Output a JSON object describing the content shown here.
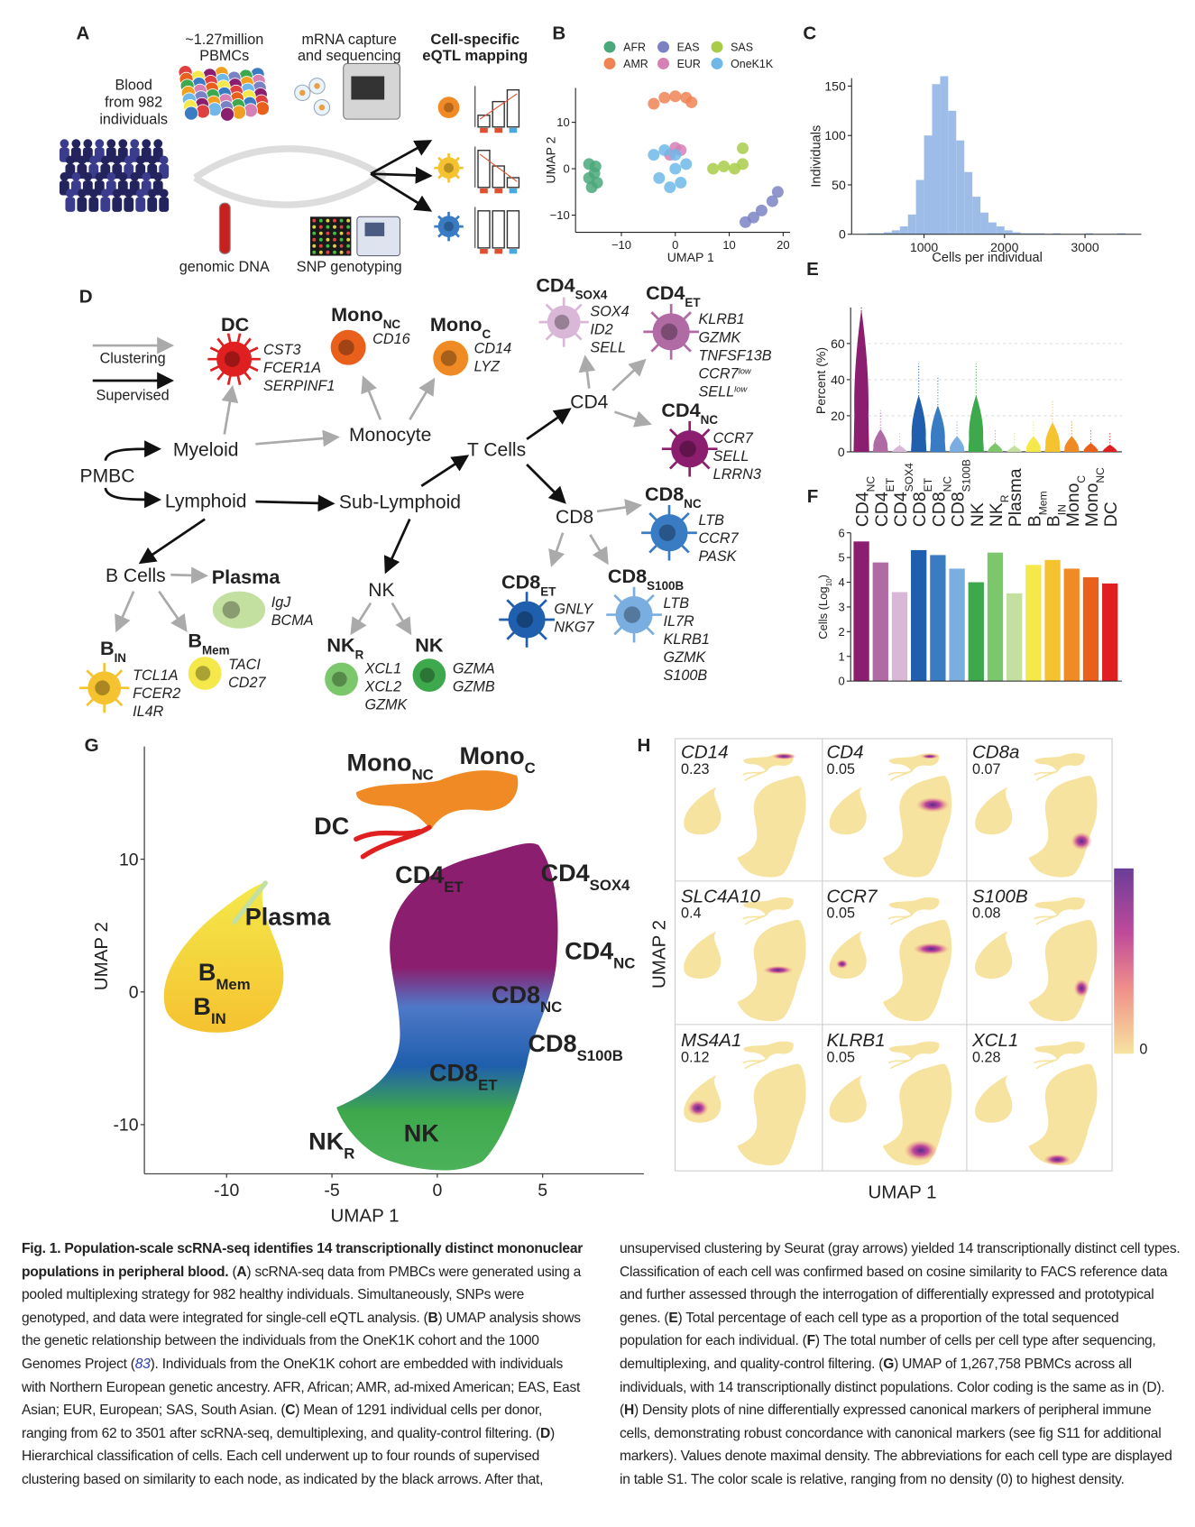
{
  "panel_letters": [
    "A",
    "B",
    "C",
    "D",
    "E",
    "F",
    "G",
    "H"
  ],
  "panel_a": {
    "blood": [
      "Blood",
      "from 982",
      "individuals"
    ],
    "pbmcs": [
      "~1.27million",
      "PBMCs"
    ],
    "capture": [
      "mRNA capture",
      "and sequencing"
    ],
    "eqtl": [
      "Cell-specific",
      "eQTL mapping"
    ],
    "dna": "genomic DNA",
    "snp": "SNP genotyping"
  },
  "chart_data": [
    {
      "type": "scatter",
      "xlabel": "UMAP 1",
      "ylabel": "UMAP 2",
      "xlim": [
        -18.5,
        21.3
      ],
      "ylim": [
        -13.7,
        17.4
      ],
      "xticks": [
        {
          "value": -10,
          "label": "−10"
        },
        0,
        10,
        20
      ],
      "yticks": [
        {
          "value": -10,
          "label": "−10"
        },
        0,
        10
      ],
      "series": [
        {
          "name": "AFR",
          "color": "#4aa87a",
          "x": [
            -16,
            -15,
            -14.5,
            -15.5,
            -16,
            -14.8
          ],
          "values": [
            1,
            -1,
            -3,
            -4,
            -2,
            0.5
          ]
        },
        {
          "name": "AMR",
          "color": "#ee8455",
          "x": [
            -4,
            -2,
            0,
            2,
            3
          ],
          "values": [
            14,
            15.3,
            15.6,
            15.3,
            14.3
          ]
        },
        {
          "name": "EAS",
          "color": "#7b82c4",
          "x": [
            19,
            18,
            16,
            14.5,
            13
          ],
          "values": [
            -5,
            -7,
            -9,
            -10.5,
            -11.5
          ]
        },
        {
          "name": "EUR",
          "color": "#d680b6",
          "x": [
            0,
            -1,
            1
          ],
          "values": [
            4.5,
            3,
            4
          ]
        },
        {
          "name": "SAS",
          "color": "#a8cc4a",
          "x": [
            7,
            9,
            11,
            12.5,
            12.5
          ],
          "values": [
            0,
            0.5,
            0,
            1,
            4.4
          ]
        },
        {
          "name": "OneK1K",
          "color": "#6fb8e8",
          "x": [
            -4,
            -2,
            0,
            2,
            -3,
            1,
            -1,
            0
          ],
          "values": [
            3,
            4,
            3,
            1,
            -2,
            -3,
            -4,
            0
          ]
        }
      ]
    },
    {
      "type": "histogram",
      "xlabel": "Cells per individual",
      "ylabel": "Individuals",
      "color": "#9dbde8",
      "xlim": [
        100,
        3700
      ],
      "ylim": [
        0,
        158
      ],
      "xticks": [
        1000,
        2000,
        3000
      ],
      "yticks": [
        0,
        50,
        100,
        150
      ],
      "bins": [
        300,
        400,
        500,
        600,
        700,
        800,
        900,
        1000,
        1100,
        1200,
        1300,
        1400,
        1500,
        1600,
        1700,
        1800,
        1900,
        2000,
        2100,
        2200,
        2300,
        2400,
        2500,
        2600,
        2700,
        2800,
        2900,
        3000,
        3100,
        3200,
        3300,
        3400,
        3500,
        3600
      ],
      "counts": [
        1,
        1,
        2,
        4,
        8,
        20,
        55,
        100,
        152,
        160,
        125,
        95,
        63,
        38,
        22,
        12,
        8,
        4,
        2,
        1,
        1,
        1,
        0,
        1,
        0,
        0,
        0,
        1,
        0,
        0,
        0,
        1,
        0
      ]
    },
    {
      "type": "violin",
      "ylabel": "Percent (%)",
      "ylim": [
        0,
        80
      ],
      "yticks": [
        0,
        20,
        40,
        60
      ],
      "values": [
        40,
        5,
        0.3,
        15,
        12,
        3,
        15,
        1,
        0.2,
        3,
        7,
        3,
        1,
        0.5
      ],
      "colors": [
        "#8b1e6e",
        "#b06aa4",
        "#d9b7d6",
        "#1f5fad",
        "#3a7cc4",
        "#7aaee0",
        "#3ea84c",
        "#7cc66b",
        "#c4e0a0",
        "#f4e84a",
        "#f5c230",
        "#f08a24",
        "#e8601c",
        "#e02020"
      ]
    },
    {
      "type": "bar",
      "ylabel": {
        "main": "Cells (Log",
        "sub": "10",
        "tail": ")"
      },
      "ylim": [
        0,
        6
      ],
      "yticks": [
        0,
        1,
        2,
        3,
        4,
        5,
        6
      ],
      "categories": [
        {
          "main": "CD4",
          "sub": "NC"
        },
        {
          "main": "CD4",
          "sub": "ET"
        },
        {
          "main": "CD4",
          "sub": "SOX4"
        },
        {
          "main": "CD8",
          "sub": "ET"
        },
        {
          "main": "CD8",
          "sub": "NC"
        },
        {
          "main": "CD8",
          "sub": "S100B"
        },
        "NK",
        {
          "main": "NK",
          "sub": "R"
        },
        "Plasma",
        {
          "main": "B",
          "sub": "Mem"
        },
        {
          "main": "B",
          "sub": "IN"
        },
        {
          "main": "Mono",
          "sub": "C"
        },
        {
          "main": "Mono",
          "sub": "NC"
        },
        "DC"
      ],
      "values": [
        5.65,
        4.8,
        3.6,
        5.3,
        5.1,
        4.55,
        4.0,
        5.2,
        3.55,
        4.7,
        4.9,
        4.55,
        4.2,
        3.95
      ],
      "colors": [
        "#8b1e6e",
        "#b06aa4",
        "#d9b7d6",
        "#1f5fad",
        "#3a7cc4",
        "#7aaee0",
        "#3ea84c",
        "#7cc66b",
        "#c4e0a0",
        "#f4e84a",
        "#f5c230",
        "#f08a24",
        "#e8601c",
        "#e02020"
      ]
    }
  ],
  "diagram": {
    "legend": {
      "clustering": "Clustering",
      "supervised": "Supervised"
    },
    "hubs": [
      "PMBC",
      "Myeloid",
      "Lymphoid",
      "Monocyte",
      "T Cells",
      "Sub-Lymphoid",
      "CD4",
      "CD8",
      "B Cells",
      "NK"
    ],
    "cells": [
      {
        "label": "DC",
        "genes": [
          "CST3",
          "FCER1A",
          "SERPINF1"
        ]
      },
      {
        "label": {
          "main": "Mono",
          "sub": "NC"
        },
        "genes": [
          "CD16"
        ]
      },
      {
        "label": {
          "main": "Mono",
          "sub": "C"
        },
        "genes": [
          "CD14",
          "LYZ"
        ]
      },
      {
        "label": {
          "main": "CD4",
          "sub": "SOX4"
        },
        "genes": [
          "SOX4",
          "ID2",
          "SELL"
        ]
      },
      {
        "label": {
          "main": "CD4",
          "sub": "ET"
        },
        "genes": [
          "KLRB1",
          "GZMK",
          "TNFSF13B",
          {
            "name": "CCR7",
            "sup": "low"
          },
          {
            "name": "SELL",
            "sup": "low"
          }
        ]
      },
      {
        "label": {
          "main": "CD4",
          "sub": "NC"
        },
        "genes": [
          "CCR7",
          "SELL",
          "LRRN3"
        ]
      },
      {
        "label": {
          "main": "CD8",
          "sub": "NC"
        },
        "genes": [
          "LTB",
          "CCR7",
          "PASK"
        ]
      },
      {
        "label": {
          "main": "CD8",
          "sub": "ET"
        },
        "genes": [
          "GNLY",
          "NKG7"
        ]
      },
      {
        "label": {
          "main": "CD8",
          "sub": "S100B"
        },
        "genes": [
          "LTB",
          "IL7R",
          "KLRB1",
          "GZMK",
          "S100B"
        ]
      },
      {
        "label": "Plasma",
        "genes": [
          "IgJ",
          "BCMA"
        ]
      },
      {
        "label": {
          "main": "B",
          "sub": "Mem"
        },
        "genes": [
          "TACI",
          "CD27"
        ]
      },
      {
        "label": {
          "main": "B",
          "sub": "IN"
        },
        "genes": [
          "TCL1A",
          "FCER2",
          "IL4R"
        ]
      },
      {
        "label": {
          "main": "NK",
          "sub": "R"
        },
        "genes": [
          "XCL1",
          "XCL2",
          "GZMK"
        ]
      },
      {
        "label": "NK",
        "genes": [
          "GZMA",
          "GZMB"
        ]
      }
    ]
  },
  "panel_g": {
    "xlabel": "UMAP 1",
    "ylabel": "UMAP 2",
    "xlim": [
      -13.9,
      9.8
    ],
    "ylim": [
      -13.7,
      18.5
    ],
    "xticks": [
      -10,
      -5,
      0,
      5
    ],
    "yticks": [
      -10,
      0,
      10
    ],
    "labels": [
      {
        "main": "Mono",
        "sub": "NC"
      },
      {
        "main": "Mono",
        "sub": "C"
      },
      "DC",
      {
        "main": "CD4",
        "sub": "ET"
      },
      {
        "main": "CD4",
        "sub": "SOX4"
      },
      "Plasma",
      {
        "main": "B",
        "sub": "Mem"
      },
      {
        "main": "B",
        "sub": "IN"
      },
      {
        "main": "CD4",
        "sub": "NC"
      },
      {
        "main": "CD8",
        "sub": "NC"
      },
      {
        "main": "CD8",
        "sub": "S100B"
      },
      {
        "main": "CD8",
        "sub": "ET"
      },
      "NK",
      {
        "main": "NK",
        "sub": "R"
      }
    ]
  },
  "panel_h": {
    "xlabel": "UMAP 1",
    "ylabel": "UMAP 2",
    "scale_min": 0,
    "markers": [
      {
        "gene": "CD14",
        "max": 0.23
      },
      {
        "gene": "CD4",
        "max": 0.05
      },
      {
        "gene": "CD8a",
        "max": 0.07
      },
      {
        "gene": "SLC4A10",
        "max": 0.4
      },
      {
        "gene": "CCR7",
        "max": 0.05
      },
      {
        "gene": "S100B",
        "max": 0.08
      },
      {
        "gene": "MS4A1",
        "max": 0.12
      },
      {
        "gene": "KLRB1",
        "max": 0.05
      },
      {
        "gene": "XCL1",
        "max": 0.28
      }
    ]
  },
  "caption": [
    {
      "t": "Fig. 1. Population-scale scRNA-seq identifies 14 transcriptionally distinct mononuclear populations in peripheral blood.",
      "s": "b"
    },
    {
      "t": " ("
    },
    {
      "t": "A",
      "s": "b"
    },
    {
      "t": ") scRNA-seq data from PMBCs were generated using a pooled multiplexing strategy for 982 healthy individuals. Simultaneously, SNPs were genotyped, and data were integrated for single-cell eQTL analysis. ("
    },
    {
      "t": "B",
      "s": "b"
    },
    {
      "t": ") UMAP analysis shows the genetic relationship between the individuals from the OneK1K cohort and the 1000 Genomes Project ("
    },
    {
      "t": "83",
      "s": "i"
    },
    {
      "t": "). Individuals from the OneK1K cohort are embedded with individuals with Northern European genetic ancestry. AFR, African; AMR, ad-mixed American; EAS, East Asian; EUR, European; SAS, South Asian. ("
    },
    {
      "t": "C",
      "s": "b"
    },
    {
      "t": ") Mean of 1291 individual cells per donor, ranging from  62 to 3501 after scRNA-seq, demultiplexing, and quality-control filtering. ("
    },
    {
      "t": "D",
      "s": "b"
    },
    {
      "t": ") Hierarchical classification of cells. Each cell underwent up to four rounds of supervised clustering based on similarity to each node, as indicated by the black arrows. After that, unsupervised clustering by Seurat (gray arrows) yielded 14 transcriptionally distinct cell types. Classification of each cell was confirmed based on cosine similarity to FACS reference data and further assessed through the interrogation of differentially expressed and prototypical genes. ("
    },
    {
      "t": "E",
      "s": "b"
    },
    {
      "t": ") Total percentage of each cell type as a proportion of the total sequenced population for each individual. ("
    },
    {
      "t": "F",
      "s": "b"
    },
    {
      "t": ") The total number of cells per cell type after sequencing, demultiplexing, and quality-control filtering. ("
    },
    {
      "t": "G",
      "s": "b"
    },
    {
      "t": ") UMAP of 1,267,758 PBMCs across all individuals, with 14 transcriptionally distinct populations. Color coding is the same as in (D). ("
    },
    {
      "t": "H",
      "s": "b"
    },
    {
      "t": ") Density plots of nine differentially expressed canonical markers of peripheral immune cells, demonstrating robust concordance with canonical markers (see fig S11 for additional markers). Values denote maximal density. The abbreviations for each cell type are displayed in table S1. The color scale is relative, ranging from no density (0) to highest density."
    }
  ]
}
